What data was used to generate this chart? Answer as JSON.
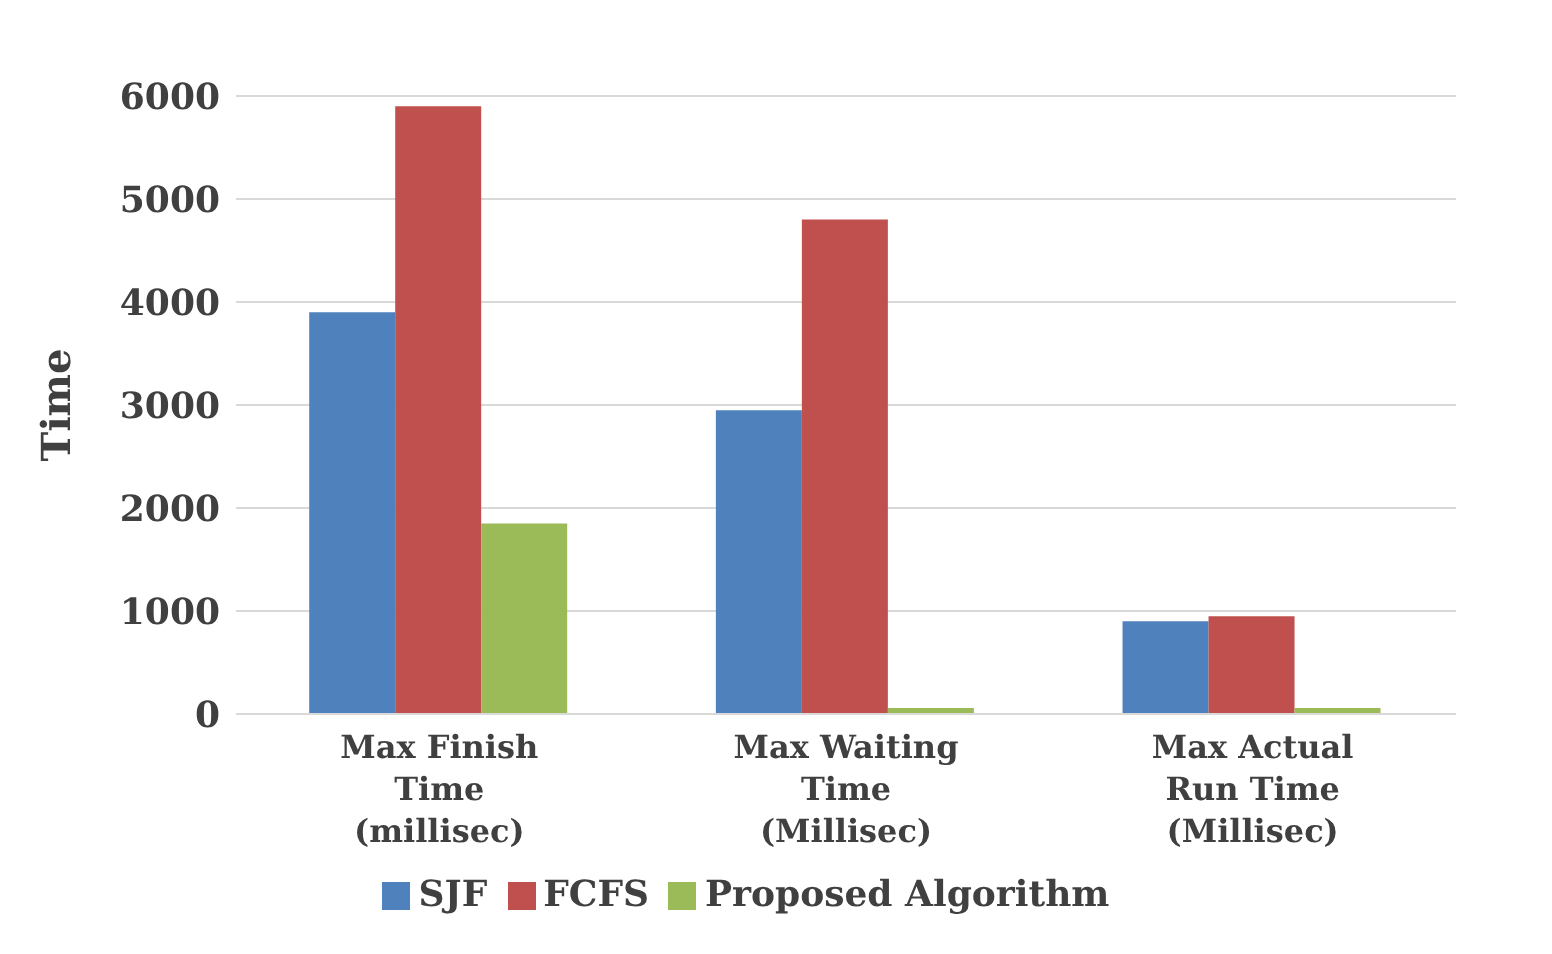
{
  "chart_data": {
    "type": "bar",
    "ylabel": "Time",
    "categories": [
      "Max Finish Time (millisec)",
      "Max Waiting Time (Millisec)",
      "Max Actual Run Time (Millisec)"
    ],
    "series": [
      {
        "name": "SJF",
        "color": "#4f81bd",
        "values": [
          3900,
          2950,
          900
        ]
      },
      {
        "name": "FCFS",
        "color": "#c0504d",
        "values": [
          5900,
          4800,
          950
        ]
      },
      {
        "name": "Proposed Algorithm",
        "color": "#9bbb59",
        "values": [
          1850,
          30,
          30
        ]
      }
    ],
    "ylim": [
      0,
      6000
    ],
    "yticks": [
      0,
      1000,
      2000,
      3000,
      4000,
      5000,
      6000
    ],
    "grid": "y",
    "legend": "bottom"
  }
}
